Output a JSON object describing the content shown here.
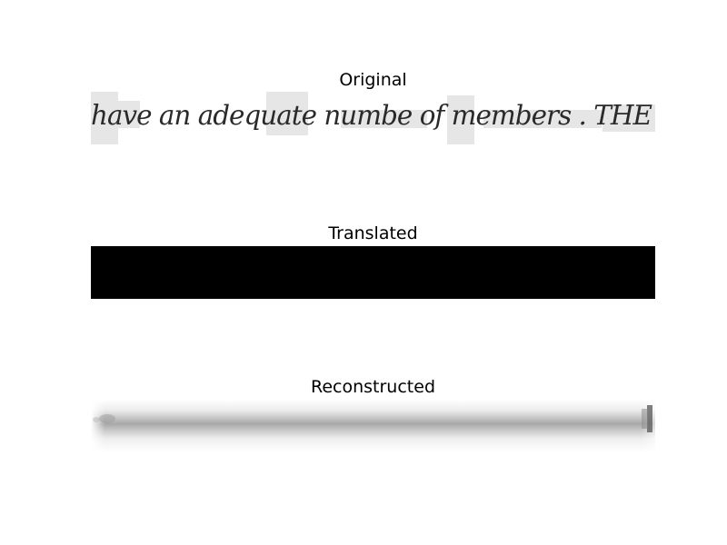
{
  "panels": {
    "original": {
      "title": "Original",
      "text": "have an adequate numbe of members . THE"
    },
    "translated": {
      "title": "Translated"
    },
    "reconstructed": {
      "title": "Reconstructed"
    }
  }
}
